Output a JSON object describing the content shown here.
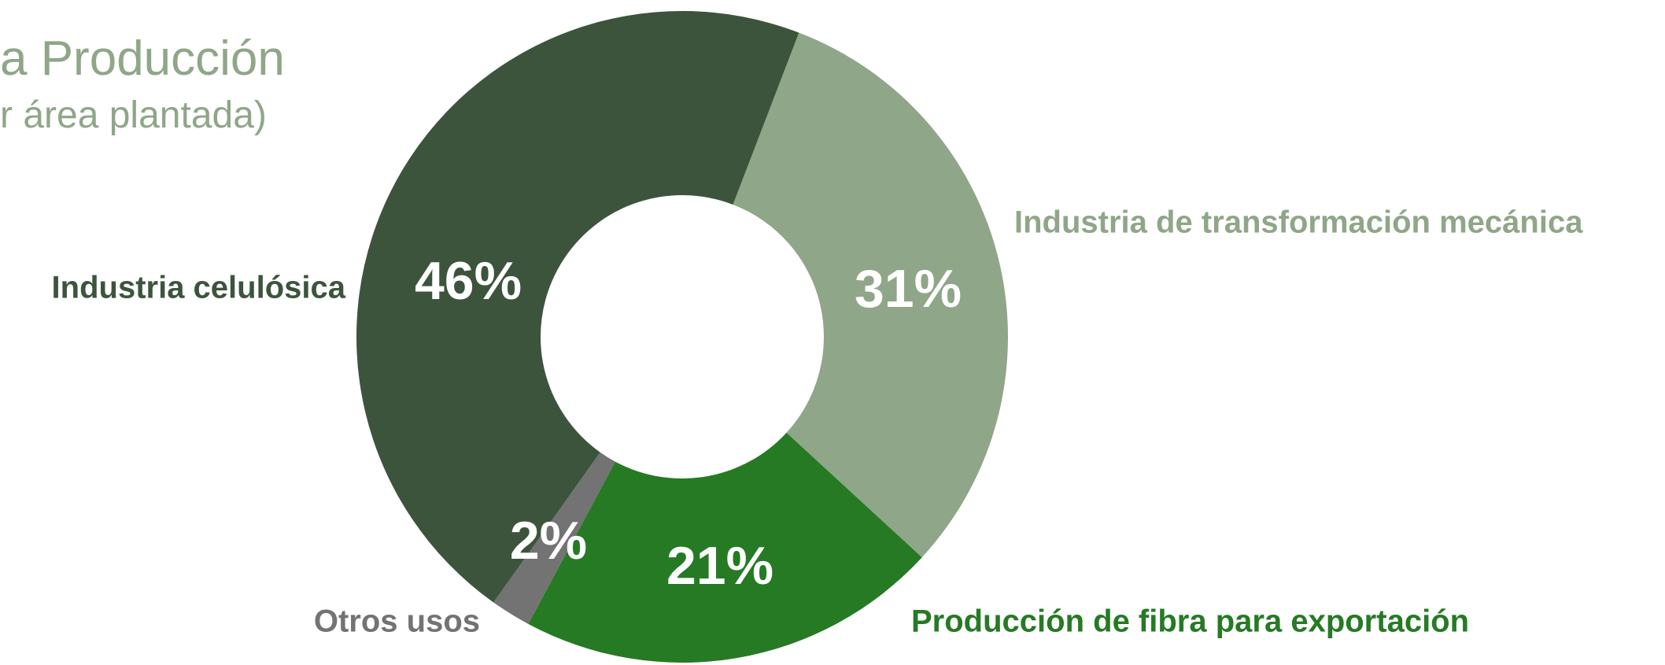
{
  "chart_data": {
    "type": "donut",
    "title": "a Producción",
    "subtitle": "r área plantada)",
    "categories": [
      "Industria de transformación mecánica",
      "Producción de fibra para exportación",
      "Otros usos",
      "Industria celulósica"
    ],
    "values": [
      31,
      21,
      2,
      46
    ],
    "value_labels": [
      "31%",
      "21%",
      "2%",
      "46%"
    ],
    "colors": [
      "#8fa688",
      "#267a24",
      "#737373",
      "#3c543c"
    ],
    "label_colors": [
      "#8fa688",
      "#267a24",
      "#737373",
      "#3c543c"
    ]
  }
}
